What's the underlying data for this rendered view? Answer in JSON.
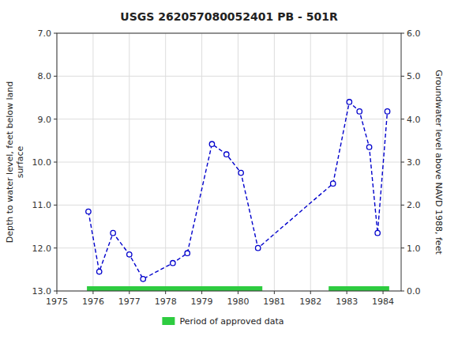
{
  "chart_data": {
    "type": "line",
    "title": "USGS 262057080052401 PB - 501R",
    "ylabel": "Depth to water level, feet below land\nsurface",
    "y2label": "Groundwater level above NAVD 1988, feet",
    "x": [
      1975.87,
      1976.17,
      1976.55,
      1977.0,
      1977.38,
      1978.2,
      1978.6,
      1979.28,
      1979.68,
      1980.08,
      1980.55,
      1982.62,
      1983.07,
      1983.35,
      1983.62,
      1983.85,
      1984.12
    ],
    "series": [
      {
        "color": "#0000CC",
        "marker": "circle",
        "line_style": "dashed",
        "values": [
          11.15,
          12.55,
          11.65,
          12.15,
          12.72,
          12.35,
          12.12,
          9.58,
          9.82,
          10.25,
          12.0,
          10.5,
          8.6,
          8.82,
          9.65,
          11.65,
          8.82
        ]
      },
      {
        "name": "Period of approved data",
        "type": "span",
        "color": "#2ecc40",
        "values": [
          [
            1975.83,
            1980.67
          ],
          [
            1982.5,
            1984.17
          ]
        ]
      }
    ],
    "xlim": [
      1975.0,
      1984.5
    ],
    "xticks": [
      1975,
      1976,
      1977,
      1978,
      1979,
      1980,
      1981,
      1982,
      1983,
      1984
    ],
    "ylim": [
      13.0,
      7.0
    ],
    "yticks": [
      {
        "value": 7,
        "label": "7.0"
      },
      {
        "value": 8,
        "label": "8.0"
      },
      {
        "value": 9,
        "label": "9.0"
      },
      {
        "value": 10,
        "label": "10.0"
      },
      {
        "value": 11,
        "label": "11.0"
      },
      {
        "value": 12,
        "label": "12.0"
      },
      {
        "value": 13,
        "label": "13.0"
      }
    ],
    "y2lim": [
      0.0,
      6.0
    ],
    "y2ticks": [
      {
        "value": 0,
        "label": "0.0"
      },
      {
        "value": 1,
        "label": "1.0"
      },
      {
        "value": 2,
        "label": "2.0"
      },
      {
        "value": 3,
        "label": "3.0"
      },
      {
        "value": 4,
        "label": "4.0"
      },
      {
        "value": 5,
        "label": "5.0"
      },
      {
        "value": 6,
        "label": "6.0"
      }
    ],
    "grid": true,
    "legend": "bottom"
  }
}
